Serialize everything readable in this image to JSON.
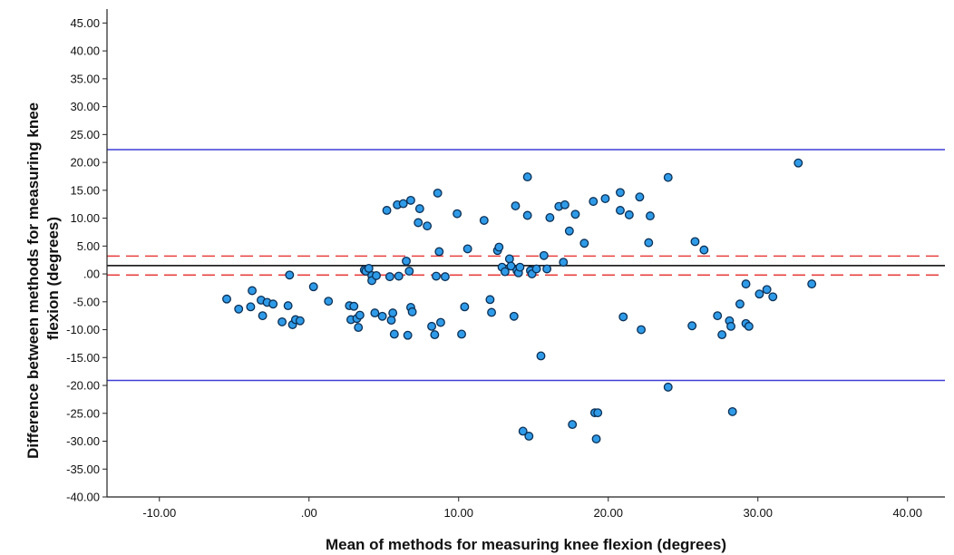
{
  "chart_data": {
    "type": "scatter",
    "title": "",
    "xlabel": "Mean of methods for measuring knee flexion (degrees)",
    "ylabel_lines": [
      "Difference between methods for measuring knee",
      "flexion (degrees)"
    ],
    "xlim": [
      -13.5,
      42.5
    ],
    "ylim": [
      -40,
      47.5
    ],
    "xticks": [
      -10,
      0,
      10,
      20,
      30,
      40
    ],
    "xtick_labels": [
      "-10.00",
      ".00",
      "10.00",
      "20.00",
      "30.00",
      "40.00"
    ],
    "yticks": [
      -40,
      -35,
      -30,
      -25,
      -20,
      -15,
      -10,
      -5,
      0,
      5,
      10,
      15,
      20,
      25,
      30,
      35,
      40,
      45
    ],
    "ytick_labels": [
      "-40.00",
      "-35.00",
      "-30.00",
      "-25.00",
      "-20.00",
      "-15.00",
      "-10.00",
      "-5.00",
      ".00",
      "5.00",
      "10.00",
      "15.00",
      "20.00",
      "25.00",
      "30.00",
      "35.00",
      "40.00",
      "45.00"
    ],
    "grid": false,
    "colors": {
      "point_fill": "#2f9be8",
      "point_stroke": "#0b2f55",
      "limit_line": "#3f3fd6",
      "ci_line": "#e8403f",
      "mean_line": "#000000",
      "axis": "#222222"
    },
    "reference_lines": [
      {
        "kind": "upper-limit",
        "y": 22.3,
        "style": "solid",
        "color": "#3f3fd6"
      },
      {
        "kind": "ci-upper",
        "y": 3.2,
        "style": "dashed",
        "color": "#e8403f"
      },
      {
        "kind": "mean",
        "y": 1.5,
        "style": "solid",
        "color": "#000000"
      },
      {
        "kind": "ci-lower",
        "y": -0.2,
        "style": "dashed",
        "color": "#e8403f"
      },
      {
        "kind": "lower-limit",
        "y": -19.1,
        "style": "solid",
        "color": "#3f3fd6"
      }
    ],
    "points": [
      [
        -5.5,
        -4.5
      ],
      [
        -4.7,
        -6.3
      ],
      [
        -3.9,
        -5.9
      ],
      [
        -3.8,
        -3.0
      ],
      [
        -3.2,
        -4.7
      ],
      [
        -3.1,
        -7.5
      ],
      [
        -2.8,
        -5.1
      ],
      [
        -2.4,
        -5.4
      ],
      [
        -1.8,
        -8.6
      ],
      [
        -1.4,
        -5.7
      ],
      [
        -1.3,
        -0.2
      ],
      [
        -1.1,
        -9.1
      ],
      [
        -0.9,
        -8.2
      ],
      [
        -0.6,
        -8.4
      ],
      [
        0.3,
        -2.3
      ],
      [
        1.3,
        -4.9
      ],
      [
        2.7,
        -5.7
      ],
      [
        2.8,
        -8.2
      ],
      [
        3.0,
        -5.8
      ],
      [
        3.2,
        -8.0
      ],
      [
        3.3,
        -9.6
      ],
      [
        3.4,
        -7.4
      ],
      [
        3.7,
        0.7
      ],
      [
        3.8,
        0.5
      ],
      [
        4.0,
        1.0
      ],
      [
        4.2,
        -0.3
      ],
      [
        4.2,
        -1.2
      ],
      [
        4.4,
        -7.0
      ],
      [
        4.5,
        -0.3
      ],
      [
        4.9,
        -7.6
      ],
      [
        5.2,
        11.4
      ],
      [
        5.4,
        -0.5
      ],
      [
        5.5,
        -8.3
      ],
      [
        5.6,
        -7.0
      ],
      [
        5.7,
        -10.8
      ],
      [
        5.9,
        12.4
      ],
      [
        6.0,
        -0.4
      ],
      [
        6.3,
        12.6
      ],
      [
        6.5,
        2.3
      ],
      [
        6.6,
        -11.0
      ],
      [
        6.7,
        0.5
      ],
      [
        6.8,
        13.2
      ],
      [
        6.8,
        -6.0
      ],
      [
        6.9,
        -6.8
      ],
      [
        7.3,
        9.2
      ],
      [
        7.4,
        11.7
      ],
      [
        7.9,
        8.6
      ],
      [
        8.2,
        -9.4
      ],
      [
        8.4,
        -10.9
      ],
      [
        8.5,
        -0.4
      ],
      [
        8.6,
        14.5
      ],
      [
        8.7,
        4.0
      ],
      [
        8.8,
        -8.7
      ],
      [
        9.1,
        -0.5
      ],
      [
        9.9,
        10.8
      ],
      [
        10.2,
        -10.8
      ],
      [
        10.4,
        -5.9
      ],
      [
        10.6,
        4.5
      ],
      [
        11.7,
        9.6
      ],
      [
        12.1,
        -4.6
      ],
      [
        12.2,
        -6.9
      ],
      [
        12.6,
        4.2
      ],
      [
        12.7,
        4.8
      ],
      [
        12.9,
        1.2
      ],
      [
        13.1,
        0.4
      ],
      [
        13.4,
        2.7
      ],
      [
        13.5,
        1.4
      ],
      [
        13.7,
        -7.6
      ],
      [
        13.8,
        12.2
      ],
      [
        13.9,
        0.6
      ],
      [
        14.0,
        0.2
      ],
      [
        14.1,
        1.2
      ],
      [
        14.3,
        -28.2
      ],
      [
        14.6,
        10.5
      ],
      [
        14.6,
        17.4
      ],
      [
        14.7,
        -29.1
      ],
      [
        14.8,
        0.6
      ],
      [
        14.9,
        0.0
      ],
      [
        15.2,
        0.9
      ],
      [
        15.5,
        -14.7
      ],
      [
        15.7,
        3.3
      ],
      [
        15.9,
        0.9
      ],
      [
        16.1,
        10.1
      ],
      [
        16.7,
        12.1
      ],
      [
        17.0,
        2.1
      ],
      [
        17.1,
        12.4
      ],
      [
        17.4,
        7.7
      ],
      [
        17.6,
        -27.0
      ],
      [
        17.8,
        10.7
      ],
      [
        18.4,
        5.5
      ],
      [
        19.0,
        13.0
      ],
      [
        19.1,
        -24.9
      ],
      [
        19.2,
        -29.6
      ],
      [
        19.3,
        -24.9
      ],
      [
        19.8,
        13.5
      ],
      [
        20.8,
        14.6
      ],
      [
        20.8,
        11.4
      ],
      [
        21.0,
        -7.7
      ],
      [
        21.4,
        10.6
      ],
      [
        22.1,
        13.8
      ],
      [
        22.2,
        -10.0
      ],
      [
        22.7,
        5.6
      ],
      [
        22.8,
        10.4
      ],
      [
        24.0,
        17.3
      ],
      [
        24.0,
        -20.3
      ],
      [
        25.6,
        -9.3
      ],
      [
        25.8,
        5.8
      ],
      [
        26.4,
        4.3
      ],
      [
        27.3,
        -7.5
      ],
      [
        27.6,
        -10.9
      ],
      [
        28.1,
        -8.4
      ],
      [
        28.2,
        -9.4
      ],
      [
        28.3,
        -24.7
      ],
      [
        28.8,
        -5.4
      ],
      [
        29.2,
        -1.8
      ],
      [
        29.2,
        -8.9
      ],
      [
        29.4,
        -9.4
      ],
      [
        30.1,
        -3.6
      ],
      [
        30.6,
        -2.8
      ],
      [
        31.0,
        -4.1
      ],
      [
        32.7,
        19.9
      ],
      [
        33.6,
        -1.8
      ]
    ]
  }
}
